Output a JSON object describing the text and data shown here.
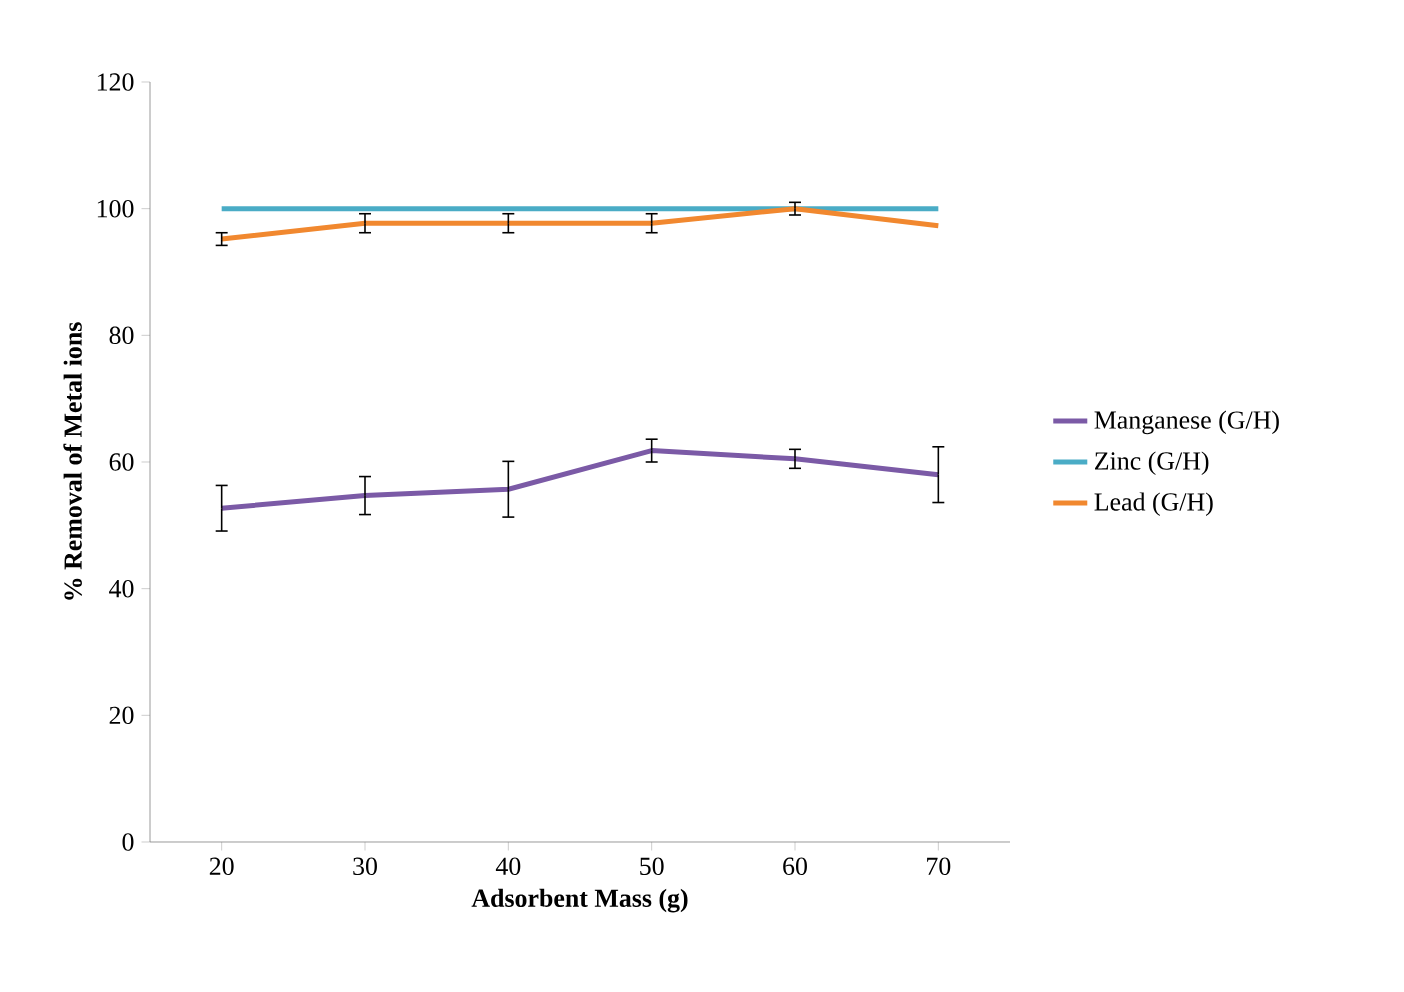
{
  "chart_data": {
    "type": "line",
    "xlabel": "Adsorbent Mass (g)",
    "ylabel": "% Removal of Metal ions",
    "categories": [
      "20",
      "30",
      "40",
      "50",
      "60",
      "70"
    ],
    "series": [
      {
        "name": "Manganese (G/H)",
        "color": "#7b5aa6",
        "values": [
          52.7,
          54.7,
          55.7,
          61.8,
          60.5,
          58
        ],
        "errors": [
          3.6,
          3,
          4.4,
          1.8,
          1.5,
          4.4
        ]
      },
      {
        "name": "Zinc (G/H)",
        "color": "#4aacc6",
        "values": [
          100,
          100,
          100,
          100,
          100,
          100
        ]
      },
      {
        "name": "Lead (G/H)",
        "color": "#f1882f",
        "values": [
          95.2,
          97.7,
          97.7,
          97.7,
          100,
          97.3
        ],
        "errors": [
          1,
          1.5,
          1.5,
          1.5,
          1,
          null
        ]
      }
    ],
    "ylim": [
      0,
      120
    ],
    "yticks": [
      0,
      20,
      40,
      60,
      80,
      100,
      120
    ],
    "legend": "right",
    "marker": "none",
    "line_style": "solid"
  }
}
